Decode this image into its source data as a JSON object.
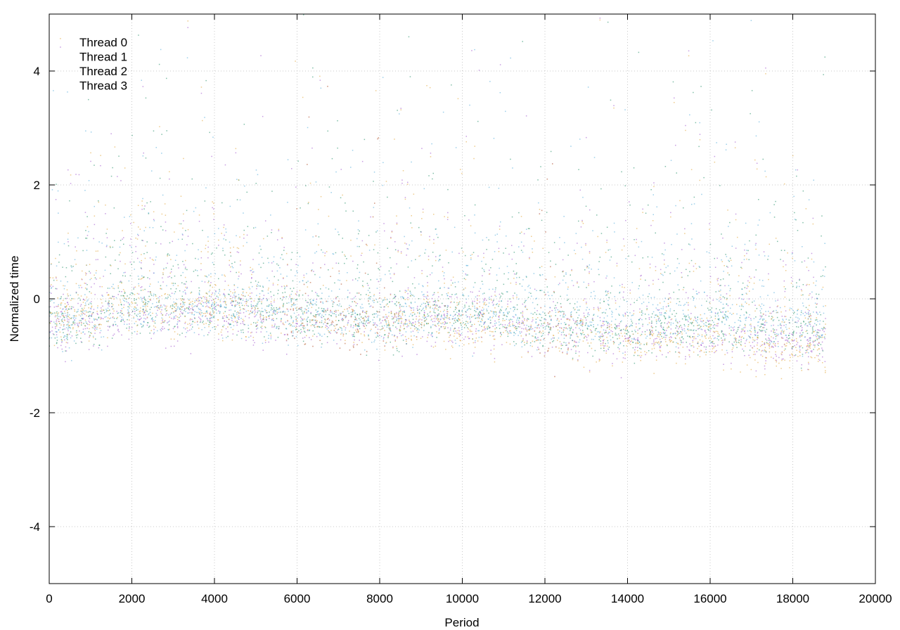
{
  "chart_data": {
    "type": "scatter",
    "xlabel": "Period",
    "ylabel": "Normalized time",
    "xlim": [
      0,
      20000
    ],
    "ylim": [
      -5,
      5
    ],
    "x_ticks": [
      0,
      2000,
      4000,
      6000,
      8000,
      10000,
      12000,
      14000,
      16000,
      18000,
      20000
    ],
    "y_ticks": [
      -4,
      -2,
      0,
      2,
      4
    ],
    "grid": true,
    "legend_position": "top-left",
    "x_data_range": [
      0,
      18800
    ],
    "series": [
      {
        "name": "Thread 0",
        "color": "#9b4dca",
        "baseline_profile": [
          [
            0,
            -0.6
          ],
          [
            2000,
            -0.3
          ],
          [
            4000,
            -0.3
          ],
          [
            6000,
            -0.4
          ],
          [
            8000,
            -0.5
          ],
          [
            10000,
            -0.4
          ],
          [
            12000,
            -0.6
          ],
          [
            14000,
            -0.75
          ],
          [
            16000,
            -0.7
          ],
          [
            18800,
            -0.8
          ]
        ]
      },
      {
        "name": "Thread 1",
        "color": "#1a8a60",
        "baseline_profile": [
          [
            0,
            -0.5
          ],
          [
            2000,
            -0.2
          ],
          [
            4000,
            -0.2
          ],
          [
            6000,
            -0.3
          ],
          [
            8000,
            -0.4
          ],
          [
            10000,
            -0.3
          ],
          [
            12000,
            -0.5
          ],
          [
            14000,
            -0.6
          ],
          [
            16000,
            -0.55
          ],
          [
            18800,
            -0.6
          ]
        ]
      },
      {
        "name": "Thread 2",
        "color": "#4aa8d8",
        "baseline_profile": [
          [
            0,
            -0.5
          ],
          [
            2000,
            -0.2
          ],
          [
            4000,
            -0.2
          ],
          [
            6000,
            -0.3
          ],
          [
            8000,
            -0.4
          ],
          [
            10000,
            -0.3
          ],
          [
            12000,
            -0.45
          ],
          [
            14000,
            -0.5
          ],
          [
            16000,
            -0.4
          ],
          [
            18800,
            -0.5
          ]
        ]
      },
      {
        "name": "Thread 3",
        "color": "#e0a030",
        "baseline_profile": [
          [
            0,
            -0.45
          ],
          [
            2000,
            -0.15
          ],
          [
            4000,
            -0.2
          ],
          [
            6000,
            -0.4
          ],
          [
            8000,
            -0.5
          ],
          [
            10000,
            -0.5
          ],
          [
            12000,
            -0.6
          ],
          [
            14000,
            -0.8
          ],
          [
            16000,
            -0.8
          ],
          [
            18800,
            -0.9
          ]
        ]
      }
    ]
  }
}
